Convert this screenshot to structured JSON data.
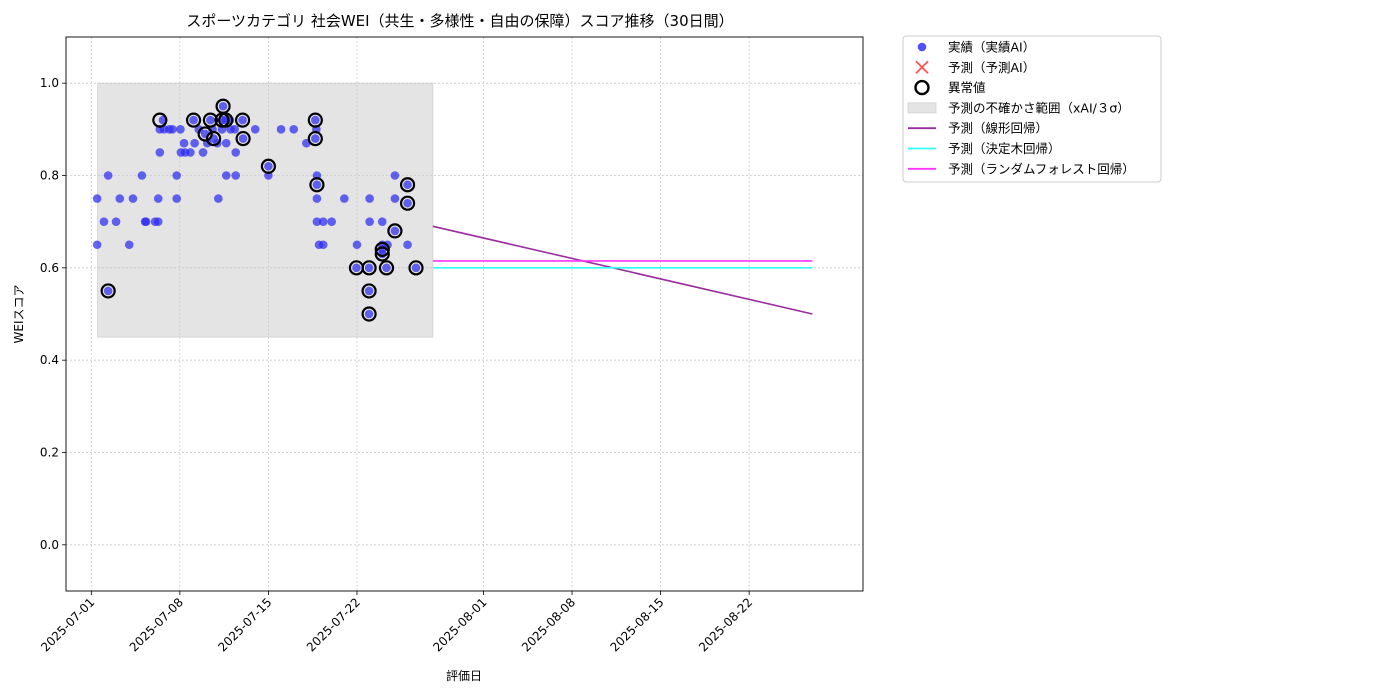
{
  "chart_data": {
    "type": "scatter",
    "title": "スポーツカテゴリ 社会WEI（共生・多様性・自由の保障）スコア推移（30日間）",
    "xlabel": "評価日",
    "ylabel": "WEIスコア",
    "x_range": [
      "2025-06-29",
      "2025-08-31"
    ],
    "ylim": [
      -0.1,
      1.1
    ],
    "x_ticks": [
      "2025-07-01",
      "2025-07-08",
      "2025-07-15",
      "2025-07-22",
      "2025-08-01",
      "2025-08-08",
      "2025-08-15",
      "2025-08-22"
    ],
    "y_ticks": [
      0.0,
      0.2,
      0.4,
      0.6,
      0.8,
      1.0
    ],
    "grid": true,
    "legend_position": "outside upper right",
    "legend": [
      {
        "label": "実績（実績AI）",
        "kind": "dot",
        "color": "#3333ee"
      },
      {
        "label": "予測（予測AI）",
        "kind": "cross",
        "color": "#ff5555"
      },
      {
        "label": "異常値",
        "kind": "ring",
        "color": "#000000"
      },
      {
        "label": "予測の不確かさ範囲（xAI/３σ）",
        "kind": "band",
        "color": "#e4e4e4"
      },
      {
        "label": "予測（線形回帰）",
        "kind": "line",
        "color": "#9b2c9f"
      },
      {
        "label": "予測（決定木回帰）",
        "kind": "line",
        "color": "#33ffff"
      },
      {
        "label": "予測（ランダムフォレスト回帰）",
        "kind": "line",
        "color": "#ff33ff"
      }
    ],
    "uncertainty_band": {
      "x": [
        "2025-07-01 12:00",
        "2025-07-28 00:00"
      ],
      "y": [
        0.45,
        1.0
      ],
      "color": "#e4e4e4"
    },
    "actual": [
      [
        "2025-07-01 11:00",
        0.75
      ],
      [
        "2025-07-01 11:00",
        0.65
      ],
      [
        "2025-07-02 00:00",
        0.7
      ],
      [
        "2025-07-02 08:00",
        0.8
      ],
      [
        "2025-07-02 08:00",
        0.55
      ],
      [
        "2025-07-02 23:00",
        0.7
      ],
      [
        "2025-07-03 06:00",
        0.75
      ],
      [
        "2025-07-04 00:00",
        0.65
      ],
      [
        "2025-07-04 07:00",
        0.75
      ],
      [
        "2025-07-05 00:00",
        0.8
      ],
      [
        "2025-07-05 06:00",
        0.7
      ],
      [
        "2025-07-05 08:00",
        0.7
      ],
      [
        "2025-07-06 01:00",
        0.7
      ],
      [
        "2025-07-06 07:00",
        0.7
      ],
      [
        "2025-07-06 07:00",
        0.75
      ],
      [
        "2025-07-06 10:00",
        0.9
      ],
      [
        "2025-07-06 10:00",
        0.85
      ],
      [
        "2025-07-06 16:00",
        0.92
      ],
      [
        "2025-07-06 18:00",
        0.9
      ],
      [
        "2025-07-07 04:00",
        0.9
      ],
      [
        "2025-07-07 10:00",
        0.9
      ],
      [
        "2025-07-07 18:00",
        0.8
      ],
      [
        "2025-07-07 18:00",
        0.75
      ],
      [
        "2025-07-08 01:00",
        0.9
      ],
      [
        "2025-07-08 02:00",
        0.85
      ],
      [
        "2025-07-08 08:00",
        0.87
      ],
      [
        "2025-07-08 10:00",
        0.85
      ],
      [
        "2025-07-08 20:00",
        0.85
      ],
      [
        "2025-07-09 02:00",
        0.92
      ],
      [
        "2025-07-09 04:00",
        0.87
      ],
      [
        "2025-07-09 12:00",
        0.9
      ],
      [
        "2025-07-09 20:00",
        0.85
      ],
      [
        "2025-07-10 00:00",
        0.89
      ],
      [
        "2025-07-10 04:00",
        0.87
      ],
      [
        "2025-07-10 10:00",
        0.92
      ],
      [
        "2025-07-10 14:00",
        0.9
      ],
      [
        "2025-07-10 16:00",
        0.88
      ],
      [
        "2025-07-10 23:00",
        0.87
      ],
      [
        "2025-07-11 01:00",
        0.75
      ],
      [
        "2025-07-11 08:00",
        0.9
      ],
      [
        "2025-07-11 08:00",
        0.92
      ],
      [
        "2025-07-11 10:00",
        0.95
      ],
      [
        "2025-07-11 15:00",
        0.92
      ],
      [
        "2025-07-11 16:00",
        0.8
      ],
      [
        "2025-07-11 16:00",
        0.87
      ],
      [
        "2025-07-11 23:00",
        0.92
      ],
      [
        "2025-07-12 00:00",
        0.9
      ],
      [
        "2025-07-12 08:00",
        0.9
      ],
      [
        "2025-07-12 10:00",
        0.85
      ],
      [
        "2025-07-12 10:00",
        0.8
      ],
      [
        "2025-07-12 23:00",
        0.92
      ],
      [
        "2025-07-13 00:00",
        0.88
      ],
      [
        "2025-07-13 23:00",
        0.9
      ],
      [
        "2025-07-15 00:00",
        0.82
      ],
      [
        "2025-07-15 00:00",
        0.8
      ],
      [
        "2025-07-16 00:00",
        0.9
      ],
      [
        "2025-07-17 00:00",
        0.9
      ],
      [
        "2025-07-18 00:00",
        0.87
      ],
      [
        "2025-07-18 17:00",
        0.92
      ],
      [
        "2025-07-18 17:00",
        0.88
      ],
      [
        "2025-07-18 19:00",
        0.9
      ],
      [
        "2025-07-18 20:00",
        0.8
      ],
      [
        "2025-07-18 20:00",
        0.78
      ],
      [
        "2025-07-18 20:00",
        0.75
      ],
      [
        "2025-07-18 20:00",
        0.7
      ],
      [
        "2025-07-19 00:00",
        0.65
      ],
      [
        "2025-07-19 08:00",
        0.7
      ],
      [
        "2025-07-19 08:00",
        0.65
      ],
      [
        "2025-07-20 00:00",
        0.7
      ],
      [
        "2025-07-21 00:00",
        0.75
      ],
      [
        "2025-07-21 23:00",
        0.6
      ],
      [
        "2025-07-22 00:00",
        0.65
      ],
      [
        "2025-07-22 23:00",
        0.6
      ],
      [
        "2025-07-22 23:00",
        0.55
      ],
      [
        "2025-07-22 23:00",
        0.5
      ],
      [
        "2025-07-23 00:00",
        0.75
      ],
      [
        "2025-07-23 00:00",
        0.7
      ],
      [
        "2025-07-24 00:00",
        0.7
      ],
      [
        "2025-07-24 00:00",
        0.65
      ],
      [
        "2025-07-24 00:00",
        0.64
      ],
      [
        "2025-07-24 00:00",
        0.63
      ],
      [
        "2025-07-24 08:00",
        0.6
      ],
      [
        "2025-07-24 10:00",
        0.65
      ],
      [
        "2025-07-25 00:00",
        0.8
      ],
      [
        "2025-07-25 00:00",
        0.75
      ],
      [
        "2025-07-25 00:00",
        0.68
      ],
      [
        "2025-07-26 00:00",
        0.78
      ],
      [
        "2025-07-26 00:00",
        0.74
      ],
      [
        "2025-07-26 00:00",
        0.65
      ],
      [
        "2025-07-26 16:00",
        0.6
      ]
    ],
    "anomalies": [
      [
        "2025-07-02 08:00",
        0.55
      ],
      [
        "2025-07-06 10:00",
        0.92
      ],
      [
        "2025-07-09 02:00",
        0.92
      ],
      [
        "2025-07-10 00:00",
        0.89
      ],
      [
        "2025-07-10 10:00",
        0.92
      ],
      [
        "2025-07-10 16:00",
        0.88
      ],
      [
        "2025-07-11 08:00",
        0.92
      ],
      [
        "2025-07-11 10:00",
        0.95
      ],
      [
        "2025-07-11 15:00",
        0.92
      ],
      [
        "2025-07-12 23:00",
        0.92
      ],
      [
        "2025-07-13 00:00",
        0.88
      ],
      [
        "2025-07-15 00:00",
        0.82
      ],
      [
        "2025-07-18 17:00",
        0.92
      ],
      [
        "2025-07-18 17:00",
        0.88
      ],
      [
        "2025-07-18 20:00",
        0.78
      ],
      [
        "2025-07-21 23:00",
        0.6
      ],
      [
        "2025-07-22 23:00",
        0.6
      ],
      [
        "2025-07-22 23:00",
        0.55
      ],
      [
        "2025-07-22 23:00",
        0.5
      ],
      [
        "2025-07-24 00:00",
        0.64
      ],
      [
        "2025-07-24 00:00",
        0.63
      ],
      [
        "2025-07-24 08:00",
        0.6
      ],
      [
        "2025-07-25 00:00",
        0.68
      ],
      [
        "2025-07-26 00:00",
        0.78
      ],
      [
        "2025-07-26 00:00",
        0.74
      ],
      [
        "2025-07-26 16:00",
        0.6
      ]
    ],
    "forecasts": [
      {
        "name": "予測（線形回帰）",
        "color": "#9b2c9f",
        "x": [
          "2025-07-28",
          "2025-08-27"
        ],
        "y": [
          0.69,
          0.5
        ]
      },
      {
        "name": "予測（決定木回帰）",
        "color": "#33ffff",
        "x": [
          "2025-07-28",
          "2025-08-27"
        ],
        "y": [
          0.6,
          0.6
        ]
      },
      {
        "name": "予測（ランダムフォレスト回帰）",
        "color": "#ff33ff",
        "x": [
          "2025-07-28",
          "2025-08-27"
        ],
        "y": [
          0.615,
          0.615
        ]
      }
    ]
  }
}
